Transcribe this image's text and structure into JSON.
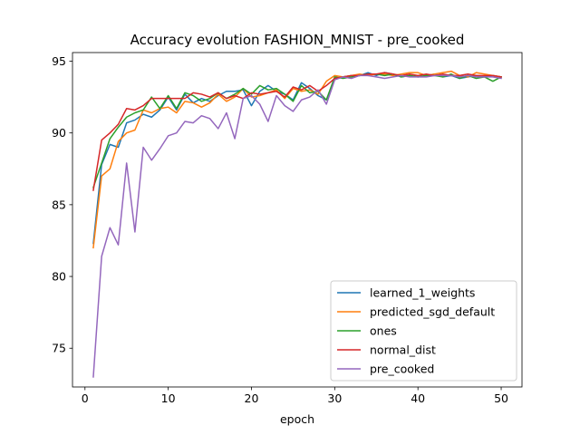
{
  "chart_data": {
    "type": "line",
    "title": "Accuracy evolution FASHION_MNIST - pre_cooked",
    "xlabel": "epoch",
    "ylabel": "",
    "xlim": [
      -1.5,
      52.5
    ],
    "ylim": [
      72.3,
      95.6
    ],
    "xticks": [
      0,
      10,
      20,
      30,
      40,
      50
    ],
    "yticks": [
      75,
      80,
      85,
      90,
      95
    ],
    "grid": false,
    "legend_position": "lower right",
    "x": [
      1,
      2,
      3,
      4,
      5,
      6,
      7,
      8,
      9,
      10,
      11,
      12,
      13,
      14,
      15,
      16,
      17,
      18,
      19,
      20,
      21,
      22,
      23,
      24,
      25,
      26,
      27,
      28,
      29,
      30,
      31,
      32,
      33,
      34,
      35,
      36,
      37,
      38,
      39,
      40,
      41,
      42,
      43,
      44,
      45,
      46,
      47,
      48,
      49,
      50
    ],
    "series": [
      {
        "name": "learned_1_weights",
        "color": "#1f77b4",
        "values": [
          82.3,
          87.8,
          89.2,
          89.0,
          90.7,
          90.9,
          91.3,
          91.1,
          91.6,
          92.5,
          91.6,
          92.7,
          92.1,
          92.4,
          92.2,
          92.6,
          92.9,
          92.9,
          93.0,
          91.9,
          92.9,
          93.3,
          92.9,
          92.7,
          92.3,
          93.5,
          93.1,
          92.6,
          92.3,
          93.8,
          93.9,
          94.0,
          94.0,
          94.2,
          94.0,
          94.2,
          94.1,
          93.9,
          94.0,
          93.9,
          94.0,
          94.1,
          93.9,
          94.0,
          93.8,
          93.9,
          94.0,
          93.9,
          94.0,
          93.9
        ]
      },
      {
        "name": "predicted_sgd_default",
        "color": "#ff7f0e",
        "values": [
          82.0,
          87.0,
          87.5,
          89.4,
          90.0,
          90.2,
          91.6,
          91.4,
          91.7,
          91.8,
          91.4,
          92.2,
          92.1,
          91.8,
          92.1,
          92.7,
          92.2,
          92.5,
          93.1,
          92.5,
          92.6,
          92.8,
          93.0,
          92.4,
          93.1,
          92.9,
          93.0,
          92.7,
          93.6,
          94.0,
          93.9,
          94.0,
          94.1,
          94.0,
          94.1,
          94.1,
          94.0,
          94.1,
          94.2,
          94.2,
          94.0,
          94.1,
          94.2,
          94.3,
          94.0,
          93.9,
          94.2,
          94.1,
          94.0,
          93.9
        ]
      },
      {
        "name": "ones",
        "color": "#2ca02c",
        "values": [
          86.2,
          87.9,
          89.6,
          90.4,
          91.1,
          91.4,
          91.6,
          92.5,
          91.7,
          92.6,
          91.7,
          92.8,
          92.6,
          92.2,
          92.4,
          92.8,
          92.4,
          92.7,
          93.1,
          92.7,
          93.3,
          93.0,
          93.1,
          92.7,
          92.2,
          93.3,
          92.8,
          92.9,
          92.3,
          93.9,
          93.8,
          93.9,
          94.0,
          94.1,
          94.1,
          94.0,
          94.1,
          93.9,
          94.0,
          93.9,
          94.0,
          94.0,
          93.9,
          94.1,
          93.8,
          94.0,
          93.8,
          93.9,
          93.6,
          93.9
        ]
      },
      {
        "name": "normal_dist",
        "color": "#d62728",
        "values": [
          86.0,
          89.5,
          90.0,
          90.6,
          91.7,
          91.6,
          91.9,
          92.4,
          92.4,
          92.4,
          92.4,
          92.4,
          92.8,
          92.7,
          92.5,
          92.8,
          92.4,
          92.6,
          92.4,
          92.8,
          92.7,
          92.8,
          92.9,
          92.5,
          93.2,
          93.0,
          93.3,
          92.9,
          93.3,
          93.8,
          93.9,
          94.0,
          94.0,
          94.1,
          94.1,
          94.2,
          94.1,
          94.0,
          94.1,
          94.0,
          94.1,
          94.0,
          94.1,
          94.0,
          94.0,
          94.1,
          94.0,
          94.0,
          94.0,
          93.9
        ]
      },
      {
        "name": "pre_cooked",
        "color": "#9467bd",
        "values": [
          73.0,
          81.4,
          83.4,
          82.2,
          87.9,
          83.1,
          89.0,
          88.1,
          88.9,
          89.8,
          90.0,
          90.8,
          90.7,
          91.2,
          91.0,
          90.3,
          91.4,
          89.6,
          92.4,
          92.6,
          92.0,
          90.8,
          92.6,
          91.9,
          91.5,
          92.3,
          92.5,
          93.0,
          92.0,
          93.7,
          93.9,
          93.8,
          94.0,
          94.0,
          93.9,
          93.8,
          93.9,
          94.0,
          93.9,
          93.9,
          93.9,
          94.0,
          94.0,
          94.0,
          93.9,
          94.0,
          93.9,
          93.9,
          93.9,
          93.8
        ]
      }
    ]
  }
}
